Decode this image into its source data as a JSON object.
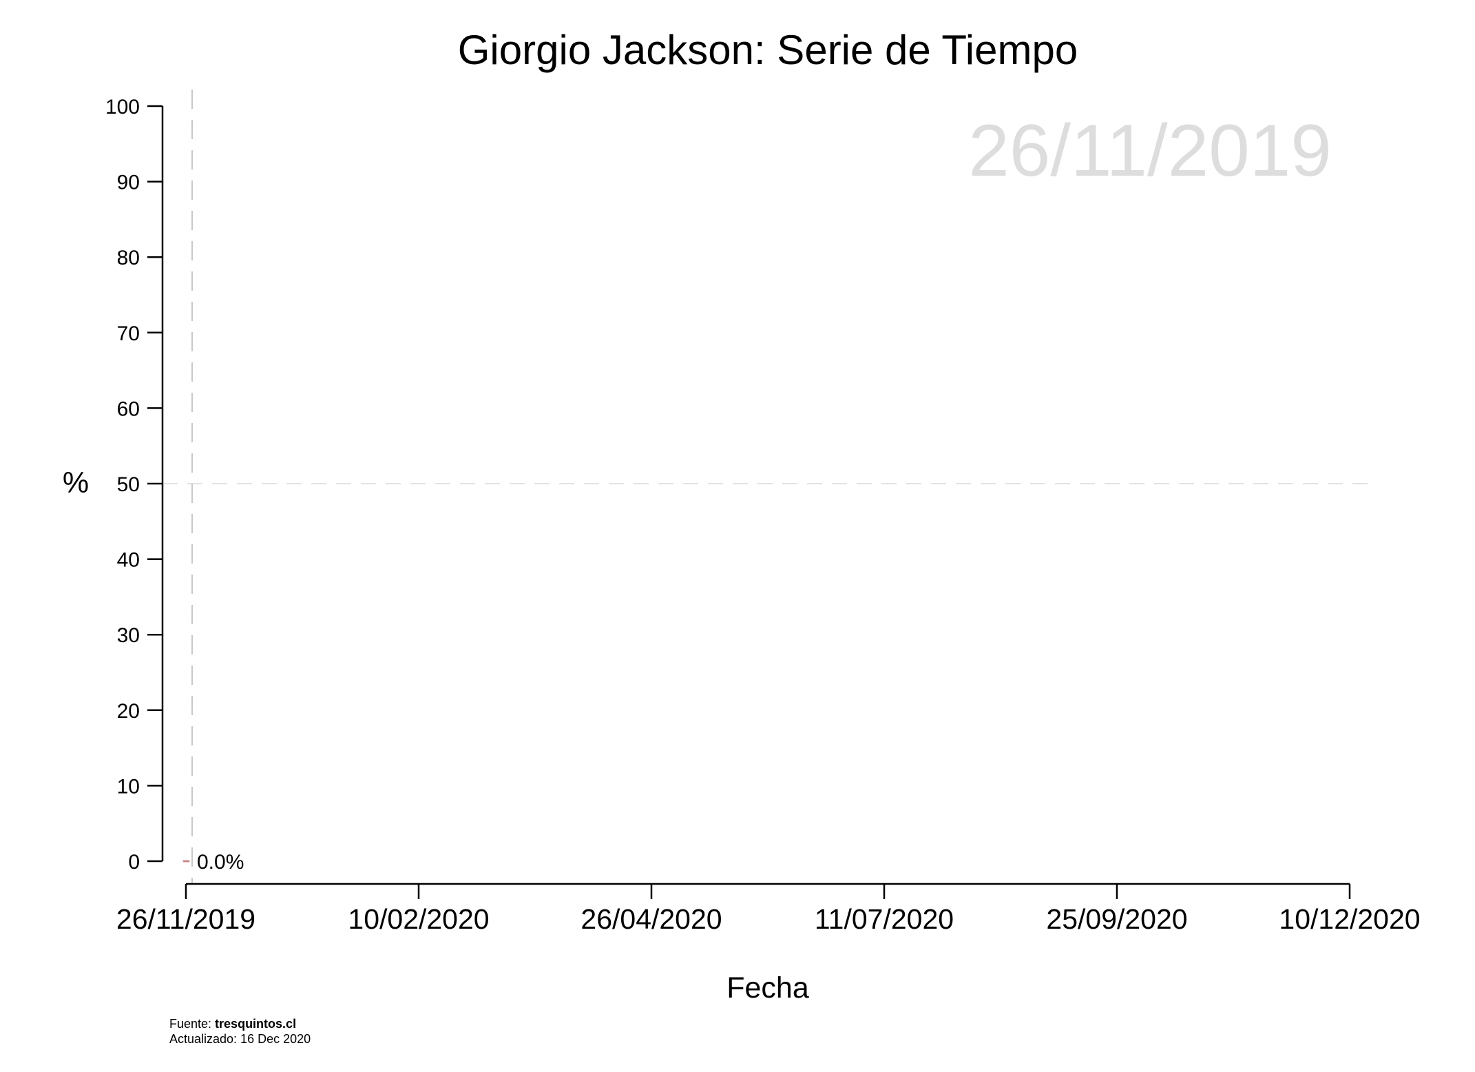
{
  "chart_data": {
    "type": "line",
    "title": "Giorgio Jackson: Serie de Tiempo",
    "xlabel": "Fecha",
    "ylabel": "%",
    "watermark_date": "26/11/2019",
    "x_axis": {
      "type": "date",
      "range": [
        "2019-11-26",
        "2020-12-10"
      ],
      "ticks": [
        "2019-11-26",
        "2020-02-10",
        "2020-04-26",
        "2020-07-11",
        "2020-09-25",
        "2020-12-10"
      ],
      "tick_labels": [
        "26/11/2019",
        "10/02/2020",
        "26/04/2020",
        "11/07/2020",
        "25/09/2020",
        "10/12/2020"
      ]
    },
    "y_axis": {
      "range": [
        0,
        100
      ],
      "ticks": [
        0,
        10,
        20,
        30,
        40,
        50,
        60,
        70,
        80,
        90,
        100
      ]
    },
    "reference_lines": {
      "horizontal": 50,
      "vertical_date": "2019-11-26"
    },
    "series": [
      {
        "color": "#c98a8a",
        "points": [
          {
            "x": "2019-11-26",
            "y": 0.0
          }
        ],
        "last_label": "0.0%"
      }
    ],
    "grid": false
  },
  "footer": {
    "source_prefix": "Fuente: ",
    "source_name": "tresquintos.cl",
    "updated": "Actualizado: 16 Dec 2020"
  }
}
